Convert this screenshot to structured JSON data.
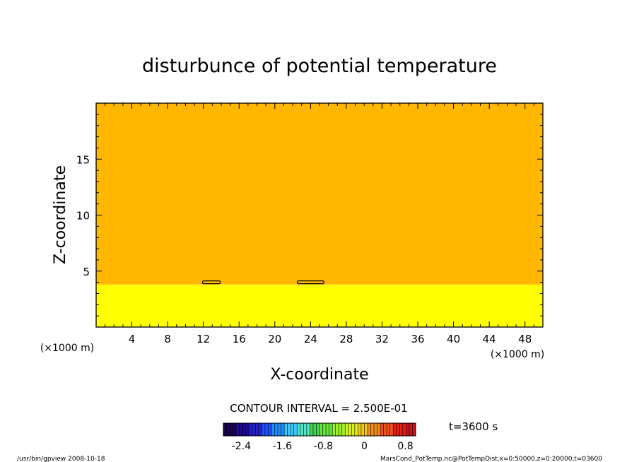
{
  "chart_data": {
    "type": "heatmap",
    "title": "disturbunce of potential temperature",
    "xlabel": "X-coordinate",
    "ylabel": "Z-coordinate",
    "x_unit": "(×1000 m)",
    "y_unit": "(×1000 m)",
    "xlim": [
      0,
      50
    ],
    "ylim": [
      0,
      20
    ],
    "x_ticks": [
      4,
      8,
      12,
      16,
      20,
      24,
      28,
      32,
      36,
      40,
      44,
      48
    ],
    "y_ticks": [
      5,
      10,
      15
    ],
    "regions": [
      {
        "z_from": 0,
        "z_to": 3.8,
        "value": 0.125,
        "color": "#ffff00"
      },
      {
        "z_from": 3.8,
        "z_to": 20,
        "value": -0.125,
        "color": "#ffb700"
      }
    ],
    "closed_contours": [
      {
        "x_center": 12.9,
        "z": 4.0,
        "half_width": 1.0
      },
      {
        "x_center": 24.0,
        "z": 4.0,
        "half_width": 1.5
      }
    ],
    "contour_interval": "CONTOUR INTERVAL = 2.500E-01",
    "time_label": "t=3600 s",
    "colorbar": {
      "range": [
        -2.75,
        1.0
      ],
      "ticks": [
        "-2.4",
        "-1.6",
        "-0.8",
        "0",
        "0.8"
      ],
      "tick_values": [
        -2.4,
        -1.6,
        -0.8,
        0,
        0.8
      ],
      "colors": [
        "#1c0050",
        "#1e0a8c",
        "#2323c8",
        "#1e50ff",
        "#1e8cff",
        "#3cc8ff",
        "#50e6c8",
        "#46d250",
        "#64e63c",
        "#a0f028",
        "#dcf01e",
        "#f0c81e",
        "#f08c1e",
        "#f0501e",
        "#e61e14",
        "#c8141e"
      ]
    },
    "footer_left": "/usr/bin/gpview   2008-10-18",
    "footer_right": "MarsCond_PotTemp.nc@PotTempDist,x=0:50000,z=0:20000,t=03600"
  }
}
